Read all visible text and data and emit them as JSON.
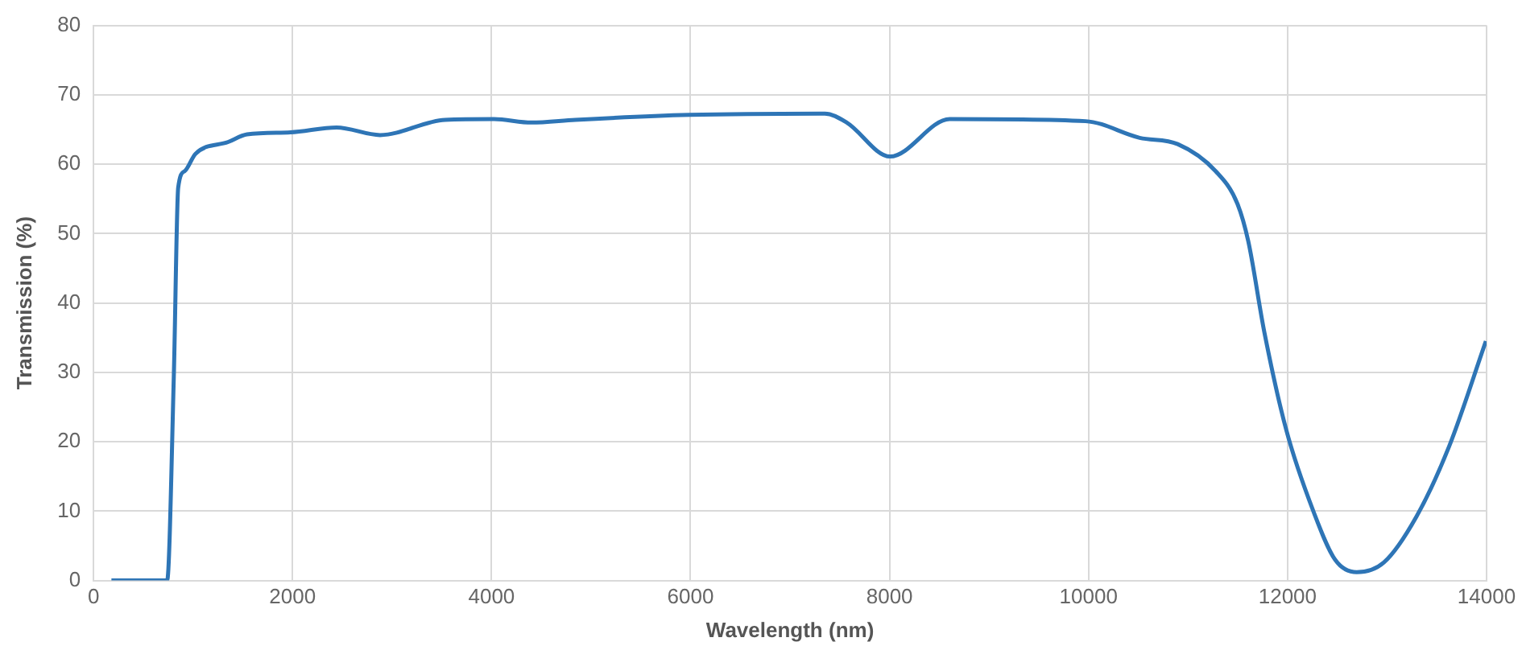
{
  "chart_data": {
    "type": "line",
    "xlabel": "Wavelength (nm)",
    "ylabel": "Transmission (%)",
    "xlim": [
      0,
      14000
    ],
    "xticks": [
      0,
      2000,
      4000,
      6000,
      8000,
      10000,
      12000,
      14000
    ],
    "ylim": [
      0,
      80
    ],
    "yticks": [
      0,
      10,
      20,
      30,
      40,
      50,
      60,
      70,
      80
    ],
    "grid": true,
    "legend": false,
    "marker": "none",
    "line_style": "solid",
    "series": [
      {
        "color": "#2e75b6",
        "x": [
          180,
          740,
          807,
          851,
          916,
          1025,
          1353,
          1543,
          1980,
          2443,
          2880,
          3534,
          4025,
          4400,
          4843,
          5990,
          7350,
          7570,
          8005,
          8605,
          9970,
          10514,
          10896,
          11277,
          11496,
          11605,
          11768,
          11987,
          12259,
          12478,
          12695,
          12968,
          13295,
          13623,
          13993
        ],
        "values": [
          0,
          0,
          29.4,
          56.6,
          59,
          61.5,
          63.2,
          64.3,
          64.6,
          65.3,
          64.2,
          66.4,
          66.5,
          66,
          66.4,
          67.1,
          67.3,
          66,
          61.1,
          66.5,
          66.2,
          63.8,
          62.9,
          59,
          54.3,
          48.9,
          35.7,
          21.7,
          10,
          3,
          1.2,
          2.6,
          9.2,
          19.3,
          34.5
        ]
      }
    ]
  }
}
